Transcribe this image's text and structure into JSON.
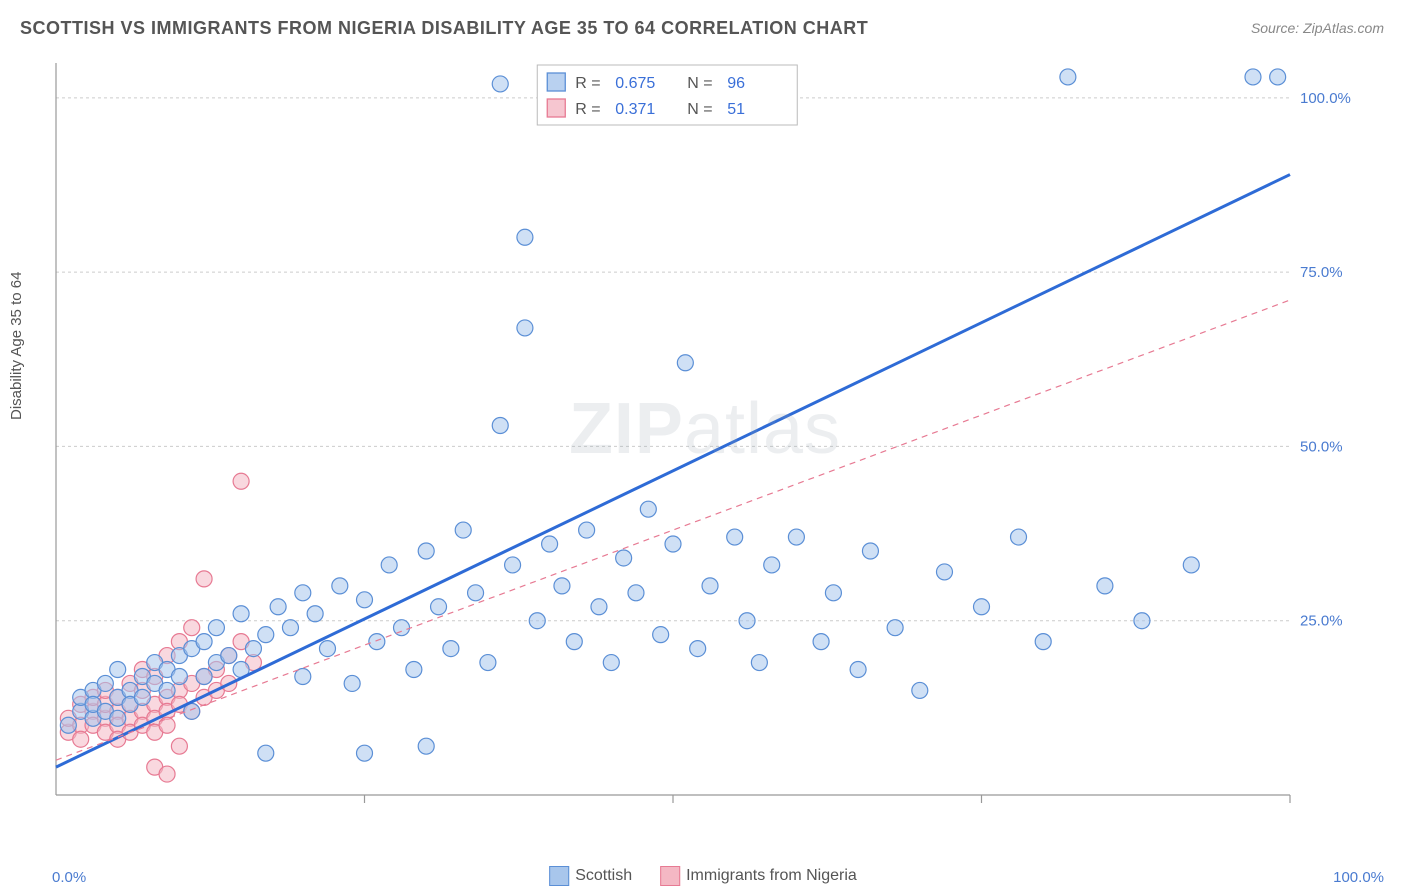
{
  "title": "SCOTTISH VS IMMIGRANTS FROM NIGERIA DISABILITY AGE 35 TO 64 CORRELATION CHART",
  "source": "Source: ZipAtlas.com",
  "ylabel": "Disability Age 35 to 64",
  "watermark_bold": "ZIP",
  "watermark_rest": "atlas",
  "chart": {
    "type": "scatter",
    "xlim": [
      0,
      100
    ],
    "ylim": [
      0,
      105
    ],
    "xlabel_min": "0.0%",
    "xlabel_max": "100.0%",
    "y_ticks": [
      {
        "v": 25,
        "label": "25.0%"
      },
      {
        "v": 50,
        "label": "50.0%"
      },
      {
        "v": 75,
        "label": "75.0%"
      },
      {
        "v": 100,
        "label": "100.0%"
      }
    ],
    "x_tick_positions": [
      25,
      50,
      75,
      100
    ],
    "grid_color": "#cccccc",
    "background_color": "#ffffff",
    "marker_radius": 8,
    "marker_stroke_width": 1.2,
    "series": [
      {
        "name": "Scottish",
        "fill": "#a8c6ec",
        "stroke": "#5b8fd6",
        "fill_opacity": 0.55,
        "trend": {
          "slope": 0.85,
          "intercept": 4,
          "stroke": "#2e6bd6",
          "width": 3,
          "dash": null
        },
        "R": "0.675",
        "N": "96",
        "points": [
          [
            1,
            10
          ],
          [
            2,
            12
          ],
          [
            2,
            14
          ],
          [
            3,
            11
          ],
          [
            3,
            15
          ],
          [
            3,
            13
          ],
          [
            4,
            12
          ],
          [
            4,
            16
          ],
          [
            5,
            14
          ],
          [
            5,
            11
          ],
          [
            5,
            18
          ],
          [
            6,
            15
          ],
          [
            6,
            13
          ],
          [
            7,
            17
          ],
          [
            7,
            14
          ],
          [
            8,
            19
          ],
          [
            8,
            16
          ],
          [
            9,
            18
          ],
          [
            9,
            15
          ],
          [
            10,
            20
          ],
          [
            10,
            17
          ],
          [
            11,
            21
          ],
          [
            11,
            12
          ],
          [
            12,
            17
          ],
          [
            12,
            22
          ],
          [
            13,
            19
          ],
          [
            13,
            24
          ],
          [
            14,
            20
          ],
          [
            15,
            18
          ],
          [
            15,
            26
          ],
          [
            16,
            21
          ],
          [
            17,
            23
          ],
          [
            17,
            6
          ],
          [
            18,
            27
          ],
          [
            19,
            24
          ],
          [
            20,
            17
          ],
          [
            20,
            29
          ],
          [
            21,
            26
          ],
          [
            22,
            21
          ],
          [
            23,
            30
          ],
          [
            24,
            16
          ],
          [
            25,
            28
          ],
          [
            25,
            6
          ],
          [
            26,
            22
          ],
          [
            27,
            33
          ],
          [
            28,
            24
          ],
          [
            29,
            18
          ],
          [
            30,
            35
          ],
          [
            30,
            7
          ],
          [
            31,
            27
          ],
          [
            32,
            21
          ],
          [
            33,
            38
          ],
          [
            34,
            29
          ],
          [
            35,
            19
          ],
          [
            36,
            53
          ],
          [
            36,
            102
          ],
          [
            37,
            33
          ],
          [
            38,
            67
          ],
          [
            38,
            80
          ],
          [
            39,
            25
          ],
          [
            40,
            36
          ],
          [
            41,
            30
          ],
          [
            42,
            22
          ],
          [
            43,
            38
          ],
          [
            44,
            27
          ],
          [
            45,
            19
          ],
          [
            46,
            34
          ],
          [
            47,
            29
          ],
          [
            48,
            41
          ],
          [
            49,
            23
          ],
          [
            50,
            36
          ],
          [
            51,
            62
          ],
          [
            52,
            21
          ],
          [
            53,
            30
          ],
          [
            54,
            102
          ],
          [
            55,
            37
          ],
          [
            56,
            25
          ],
          [
            57,
            19
          ],
          [
            58,
            33
          ],
          [
            60,
            37
          ],
          [
            62,
            22
          ],
          [
            63,
            29
          ],
          [
            65,
            18
          ],
          [
            66,
            35
          ],
          [
            68,
            24
          ],
          [
            70,
            15
          ],
          [
            72,
            32
          ],
          [
            75,
            27
          ],
          [
            78,
            37
          ],
          [
            80,
            22
          ],
          [
            82,
            103
          ],
          [
            85,
            30
          ],
          [
            88,
            25
          ],
          [
            92,
            33
          ],
          [
            97,
            103
          ],
          [
            99,
            103
          ]
        ]
      },
      {
        "name": "Immigrants from Nigeria",
        "fill": "#f4b8c4",
        "stroke": "#e77a93",
        "fill_opacity": 0.55,
        "trend": {
          "slope": 0.66,
          "intercept": 5,
          "stroke": "#e77a93",
          "width": 1.2,
          "dash": "6 5"
        },
        "R": "0.371",
        "N": "51",
        "points": [
          [
            1,
            9
          ],
          [
            1,
            11
          ],
          [
            2,
            10
          ],
          [
            2,
            13
          ],
          [
            2,
            8
          ],
          [
            3,
            12
          ],
          [
            3,
            10
          ],
          [
            3,
            14
          ],
          [
            4,
            11
          ],
          [
            4,
            13
          ],
          [
            4,
            9
          ],
          [
            4,
            15
          ],
          [
            5,
            12
          ],
          [
            5,
            10
          ],
          [
            5,
            14
          ],
          [
            5,
            8
          ],
          [
            6,
            13
          ],
          [
            6,
            11
          ],
          [
            6,
            16
          ],
          [
            6,
            9
          ],
          [
            7,
            12
          ],
          [
            7,
            15
          ],
          [
            7,
            10
          ],
          [
            7,
            18
          ],
          [
            8,
            13
          ],
          [
            8,
            11
          ],
          [
            8,
            17
          ],
          [
            8,
            9
          ],
          [
            9,
            14
          ],
          [
            9,
            12
          ],
          [
            9,
            20
          ],
          [
            9,
            10
          ],
          [
            10,
            15
          ],
          [
            10,
            13
          ],
          [
            10,
            22
          ],
          [
            10,
            7
          ],
          [
            11,
            16
          ],
          [
            11,
            12
          ],
          [
            11,
            24
          ],
          [
            12,
            17
          ],
          [
            12,
            14
          ],
          [
            12,
            31
          ],
          [
            13,
            18
          ],
          [
            13,
            15
          ],
          [
            14,
            20
          ],
          [
            14,
            16
          ],
          [
            15,
            22
          ],
          [
            15,
            45
          ],
          [
            16,
            19
          ],
          [
            8,
            4
          ],
          [
            9,
            3
          ]
        ]
      }
    ],
    "legend_bottom": [
      {
        "swatch_fill": "#a8c6ec",
        "swatch_stroke": "#5b8fd6",
        "label": "Scottish"
      },
      {
        "swatch_fill": "#f4b8c4",
        "swatch_stroke": "#e77a93",
        "label": "Immigrants from Nigeria"
      }
    ],
    "stats_legend": {
      "border": "#bbbbbb",
      "bg": "#ffffff",
      "r_label": "R =",
      "n_label": "N ="
    }
  }
}
